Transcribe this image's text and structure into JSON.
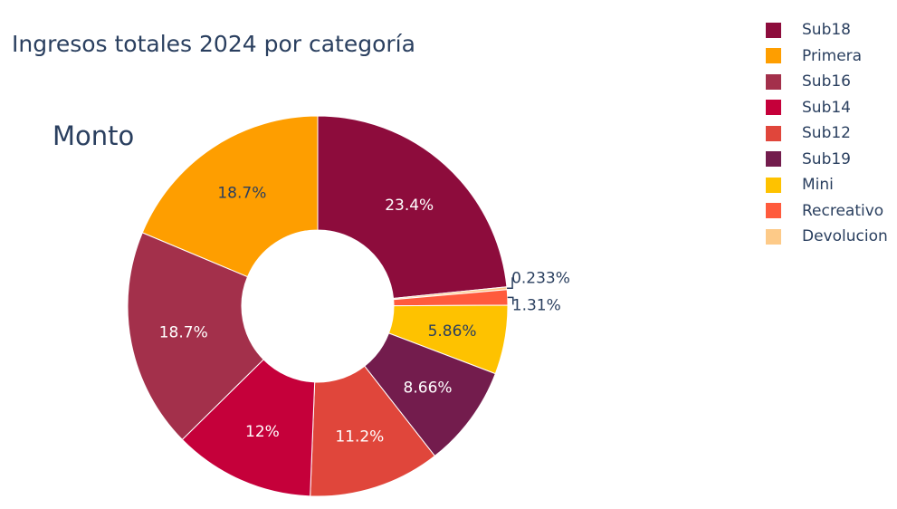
{
  "chart_data": {
    "type": "pie",
    "hole": true,
    "title": "Ingresos totales 2024 por categoría",
    "annotation": "Monto",
    "legend_position": "top-right",
    "slices": [
      {
        "name": "Sub18",
        "percent": 23.4,
        "label": "23.4%",
        "color": "#8d0c3c",
        "text_color": "#ffffff"
      },
      {
        "name": "Devolucion",
        "percent": 0.233,
        "label": "0.233%",
        "color": "#fdca88",
        "text_color": "#2a3f5f"
      },
      {
        "name": "Recreativo",
        "percent": 1.31,
        "label": "1.31%",
        "color": "#ff5b3d",
        "text_color": "#2a3f5f"
      },
      {
        "name": "Mini",
        "percent": 5.86,
        "label": "5.86%",
        "color": "#fec200",
        "text_color": "#2a3f5f"
      },
      {
        "name": "Sub19",
        "percent": 8.66,
        "label": "8.66%",
        "color": "#731c4d",
        "text_color": "#ffffff"
      },
      {
        "name": "Sub12",
        "percent": 11.2,
        "label": "11.2%",
        "color": "#e0463b",
        "text_color": "#ffffff"
      },
      {
        "name": "Sub14",
        "percent": 12,
        "label": "12%",
        "color": "#c5003a",
        "text_color": "#ffffff"
      },
      {
        "name": "Sub16",
        "percent": 18.7,
        "label": "18.7%",
        "color": "#a3304b",
        "text_color": "#ffffff"
      },
      {
        "name": "Primera",
        "percent": 18.7,
        "label": "18.7%",
        "color": "#fe9e00",
        "text_color": "#2a3f5f"
      }
    ],
    "legend": [
      {
        "name": "Sub18",
        "color": "#8d0c3c"
      },
      {
        "name": "Primera",
        "color": "#fe9e00"
      },
      {
        "name": "Sub16",
        "color": "#a3304b"
      },
      {
        "name": "Sub14",
        "color": "#c5003a"
      },
      {
        "name": "Sub12",
        "color": "#e0463b"
      },
      {
        "name": "Sub19",
        "color": "#731c4d"
      },
      {
        "name": "Mini",
        "color": "#fec200"
      },
      {
        "name": "Recreativo",
        "color": "#ff5b3d"
      },
      {
        "name": "Devolucion",
        "color": "#fdca88"
      }
    ]
  }
}
